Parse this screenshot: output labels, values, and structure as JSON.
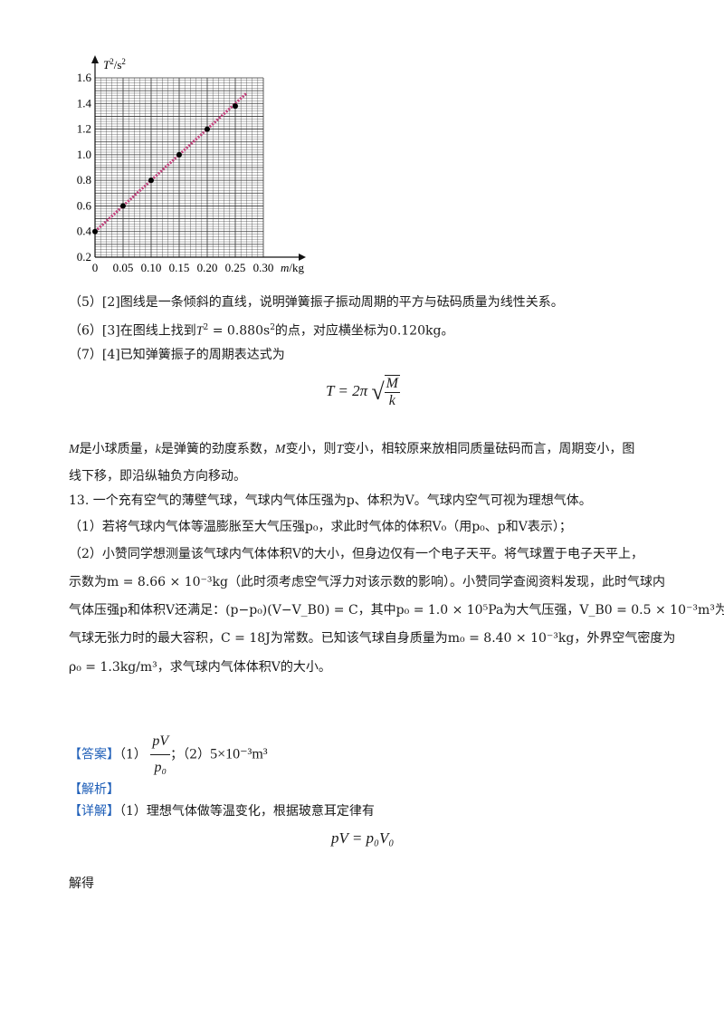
{
  "chart_data": {
    "type": "scatter",
    "ylabel_T": "T",
    "ylabel_sup": "2",
    "ylabel_unit": "/s",
    "ylabel_unit_sup": "2",
    "xlabel_m": "m",
    "xlabel_unit": "/kg",
    "xlim": [
      0,
      0.3
    ],
    "ylim": [
      0.2,
      1.6
    ],
    "xticks": [
      "0",
      "0.05",
      "0.10",
      "0.15",
      "0.20",
      "0.25",
      "0.30"
    ],
    "yticks": [
      "0.2",
      "0.4",
      "0.6",
      "0.8",
      "1.0",
      "1.2",
      "1.4",
      "1.6"
    ],
    "points": [
      {
        "x": 0,
        "y": 0.4
      },
      {
        "x": 0.05,
        "y": 0.6
      },
      {
        "x": 0.1,
        "y": 0.8
      },
      {
        "x": 0.15,
        "y": 1.0
      },
      {
        "x": 0.2,
        "y": 1.2
      },
      {
        "x": 0.25,
        "y": 1.38
      }
    ],
    "fit_line": {
      "x1": 0,
      "y1": 0.4,
      "x2": 0.27,
      "y2": 1.48
    },
    "grid": true,
    "colors": {
      "grid": "#333333",
      "fit": "#c0407a",
      "point": "#000000"
    }
  },
  "lines": {
    "l5": "（5）[2]图线是一条倾斜的直线，说明弹簧振子振动周期的平方与砝码质量为线性关系。",
    "l6a": "（6）[3]在图线上找到",
    "l6b": "= 0.880s",
    "l6c": "的点，对应横坐标为0.120kg。",
    "l7": "（7）[4]已知弹簧振子的周期表达式为",
    "formula_T": "T = 2π",
    "formula_M": "M",
    "formula_k": "k",
    "m1a": "是小球质量，",
    "m1b": "是弹簧的劲度系数，",
    "m1c": "变小，则",
    "m1d": "变小，相较原来放相同质量砝码而言，周期变小，图",
    "m2": "线下移，即沿纵轴负方向移动。",
    "q13": "13. 一个充有空气的薄壁气球，气球内气体压强为p、体积为V。气球内空气可视为理想气体。",
    "q13_1": "（1）若将气球内气体等温膨胀至大气压强p₀，求此时气体的体积V₀（用p₀、p和V表示）；",
    "q13_2a": "（2）小赞同学想测量该气球内气体体积V的大小，但身边仅有一个电子天平。将气球置于电子天平上，",
    "q13_2b": "示数为m = 8.66 × 10⁻³kg（此时须考虑空气浮力对该示数的影响）。小赞同学查阅资料发现，此时气球内",
    "q13_2c": "气体压强p和体积V还满足：(p−p₀)(V−V_B0) = C，其中p₀ = 1.0 × 10⁵Pa为大气压强，V_B0 = 0.5 × 10⁻³m³为",
    "q13_2d": "气球无张力时的最大容积，C = 18J为常数。已知该气球自身质量为m₀ = 8.40 × 10⁻³kg，外界空气密度为",
    "q13_2e": "ρ₀ = 1.3kg/m³，求气球内气体体积V的大小。",
    "answer_tag": "【答案】",
    "answer_1": "（1）",
    "answer_num": "pV",
    "answer_den": "p₀",
    "answer_sep": "；（2）",
    "answer_2": "5×10⁻³m³",
    "analysis_tag": "【解析】",
    "detail_tag": "【详解】",
    "detail_text": "（1）理想气体做等温变化，根据玻意耳定律有",
    "boyle": "pV = p₀V₀",
    "solve": "解得"
  }
}
